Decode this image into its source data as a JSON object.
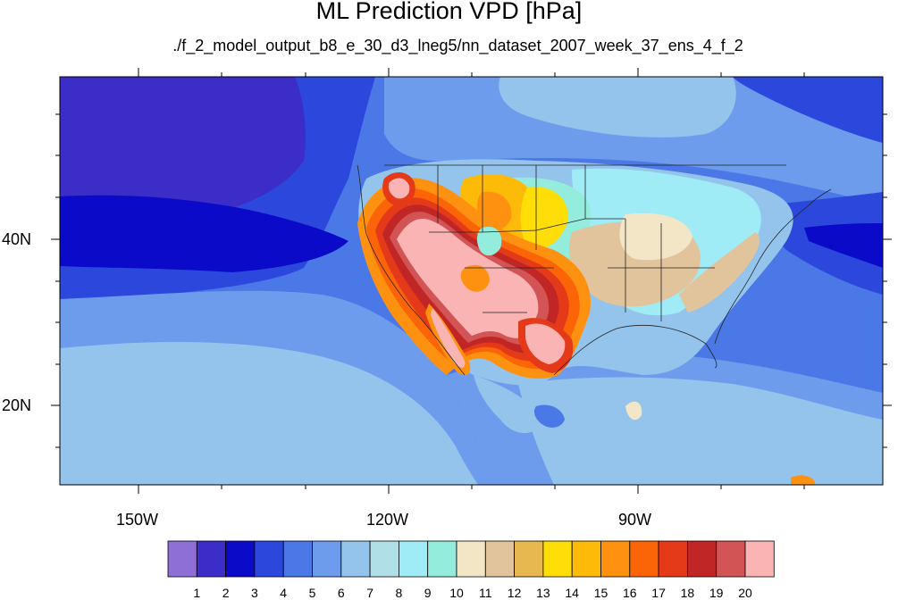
{
  "figure": {
    "title": "ML Prediction VPD [hPa]",
    "subtitle": "./f_2_model_output_b8_e_30_d3_lneg5/nn_dataset_2007_week_37_ens_4_f_2"
  },
  "map": {
    "projection": "cylindrical equidistant",
    "lon_range": [
      -160,
      -62
    ],
    "lat_range": [
      10,
      59
    ],
    "lon_tick_labels": [
      "150W",
      "120W",
      "90W"
    ],
    "lat_tick_labels": [
      "40N",
      "20N"
    ]
  },
  "colorbar": {
    "labels": [
      "1",
      "2",
      "3",
      "4",
      "5",
      "6",
      "7",
      "8",
      "9",
      "10",
      "11",
      "12",
      "13",
      "14",
      "15",
      "16",
      "17",
      "18",
      "19",
      "20"
    ],
    "colors": [
      "#8e6fd6",
      "#3c2cc8",
      "#0a0ac8",
      "#2c48dc",
      "#4a78e6",
      "#6e9cec",
      "#94c4ec",
      "#b0dfe8",
      "#a0ecf6",
      "#94ecdc",
      "#f2e6c6",
      "#e2c49c",
      "#e8b850",
      "#fede06",
      "#feba08",
      "#fe9210",
      "#fc6408",
      "#e43a1a",
      "#c02626",
      "#d25454",
      "#fab4b4"
    ]
  },
  "icons": {
    "map": "contour-map",
    "colorbar": "colorbar-legend"
  }
}
